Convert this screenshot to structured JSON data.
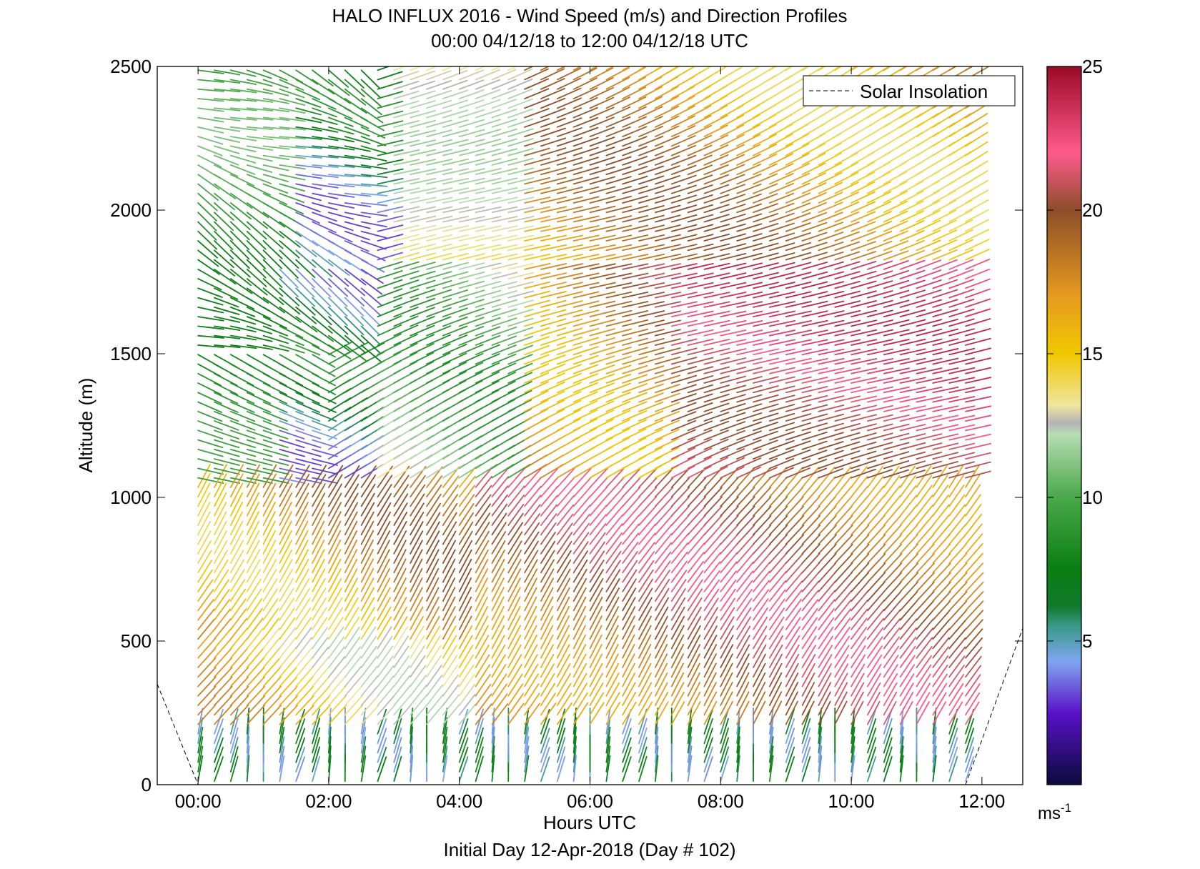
{
  "chart_data": {
    "type": "quiver",
    "title": "HALO INFLUX 2016 - Wind Speed (m/s) and Direction Profiles",
    "subtitle": "00:00 04/12/18 to 12:00 04/12/18  UTC",
    "xlabel": "Hours UTC",
    "ylabel": "Altitude (m)",
    "footer": "Initial Day 12-Apr-2018 (Day # 102)",
    "xlim": [
      -0.625,
      12.625
    ],
    "ylim": [
      0,
      2500
    ],
    "x_ticks": [
      0,
      2,
      4,
      6,
      8,
      10,
      12
    ],
    "x_tick_labels": [
      "00:00",
      "02:00",
      "04:00",
      "06:00",
      "08:00",
      "10:00",
      "12:00"
    ],
    "y_ticks": [
      0,
      500,
      1000,
      1500,
      2000,
      2500
    ],
    "y_tick_labels": [
      "0",
      "500",
      "1000",
      "1500",
      "2000",
      "2500"
    ],
    "colorbar": {
      "range": [
        0,
        25
      ],
      "ticks": [
        5,
        10,
        15,
        20,
        25
      ],
      "tick_labels": [
        "5",
        "10",
        "15",
        "20",
        "25"
      ],
      "unit_label": "ms",
      "unit_exponent": "-1",
      "stops": [
        {
          "v": 0,
          "c": "#0a0a3c"
        },
        {
          "v": 2.5,
          "c": "#5a12c8"
        },
        {
          "v": 4.3,
          "c": "#7fa6f0"
        },
        {
          "v": 5.5,
          "c": "#3a9a8a"
        },
        {
          "v": 6.2,
          "c": "#117a2e"
        },
        {
          "v": 7.5,
          "c": "#0a7e12"
        },
        {
          "v": 10,
          "c": "#4aa84a"
        },
        {
          "v": 12.2,
          "c": "#b8dcb4"
        },
        {
          "v": 12.6,
          "c": "#b4b4b4"
        },
        {
          "v": 13.2,
          "c": "#f0e6a0"
        },
        {
          "v": 15,
          "c": "#f0c800"
        },
        {
          "v": 17,
          "c": "#e69a1e"
        },
        {
          "v": 20,
          "c": "#8c4e2a"
        },
        {
          "v": 22,
          "c": "#ff5a8c"
        },
        {
          "v": 25,
          "c": "#9a0a28"
        }
      ]
    },
    "legend": {
      "position": "top-right",
      "entries": [
        "Solar Insolation"
      ]
    },
    "series": [
      {
        "name": "Solar Insolation",
        "style": "dashed",
        "segments": [
          {
            "x": [
              -0.625,
              0.0
            ],
            "y": [
              350,
              0
            ]
          },
          {
            "x": [
              11.75,
              12.625
            ],
            "y": [
              0,
              545
            ]
          }
        ]
      }
    ],
    "wind": {
      "x_start": 0,
      "x_end": 11.75,
      "x_step": 0.25,
      "y_start": 0,
      "y_end": 2500,
      "y_step": 33,
      "description": "wind barbs per time/height bin; color = speed (m/s)"
    }
  }
}
